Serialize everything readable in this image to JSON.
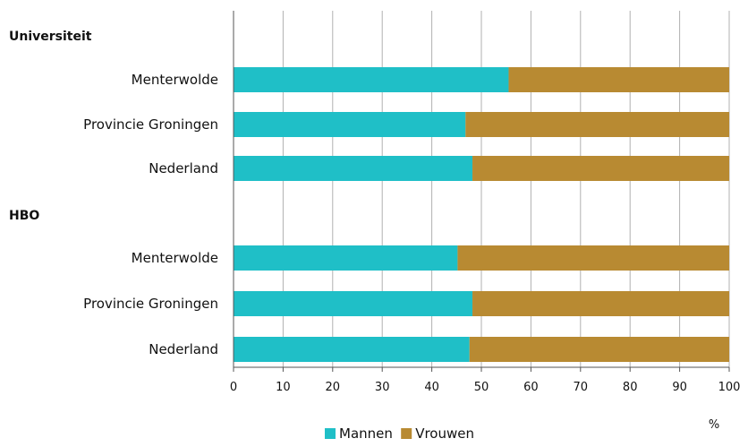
{
  "chart_data": {
    "type": "bar",
    "orientation": "horizontal",
    "stacked": true,
    "unit_label": "%",
    "xlim": [
      0,
      100
    ],
    "x_ticks": [
      "0",
      "10",
      "20",
      "30",
      "40",
      "50",
      "60",
      "70",
      "80",
      "90",
      "100"
    ],
    "grid": true,
    "legend_position": "bottom",
    "groups": [
      {
        "label": "Universiteit",
        "categories": [
          "Menterwolde",
          "Provincie Groningen",
          "Nederland"
        ],
        "series": [
          {
            "name": "Mannen",
            "values": [
              55.5,
              46.8,
              48.2
            ]
          },
          {
            "name": "Vrouwen",
            "values": [
              44.5,
              53.2,
              51.8
            ]
          }
        ]
      },
      {
        "label": "HBO",
        "categories": [
          "Menterwolde",
          "Provincie Groningen",
          "Nederland"
        ],
        "series": [
          {
            "name": "Mannen",
            "values": [
              45.2,
              48.2,
              47.6
            ]
          },
          {
            "name": "Vrouwen",
            "values": [
              54.8,
              51.8,
              52.4
            ]
          }
        ]
      }
    ],
    "colors": {
      "Mannen": "#1fbfc7",
      "Vrouwen": "#b88a32"
    },
    "legend": [
      "Mannen",
      "Vrouwen"
    ]
  }
}
